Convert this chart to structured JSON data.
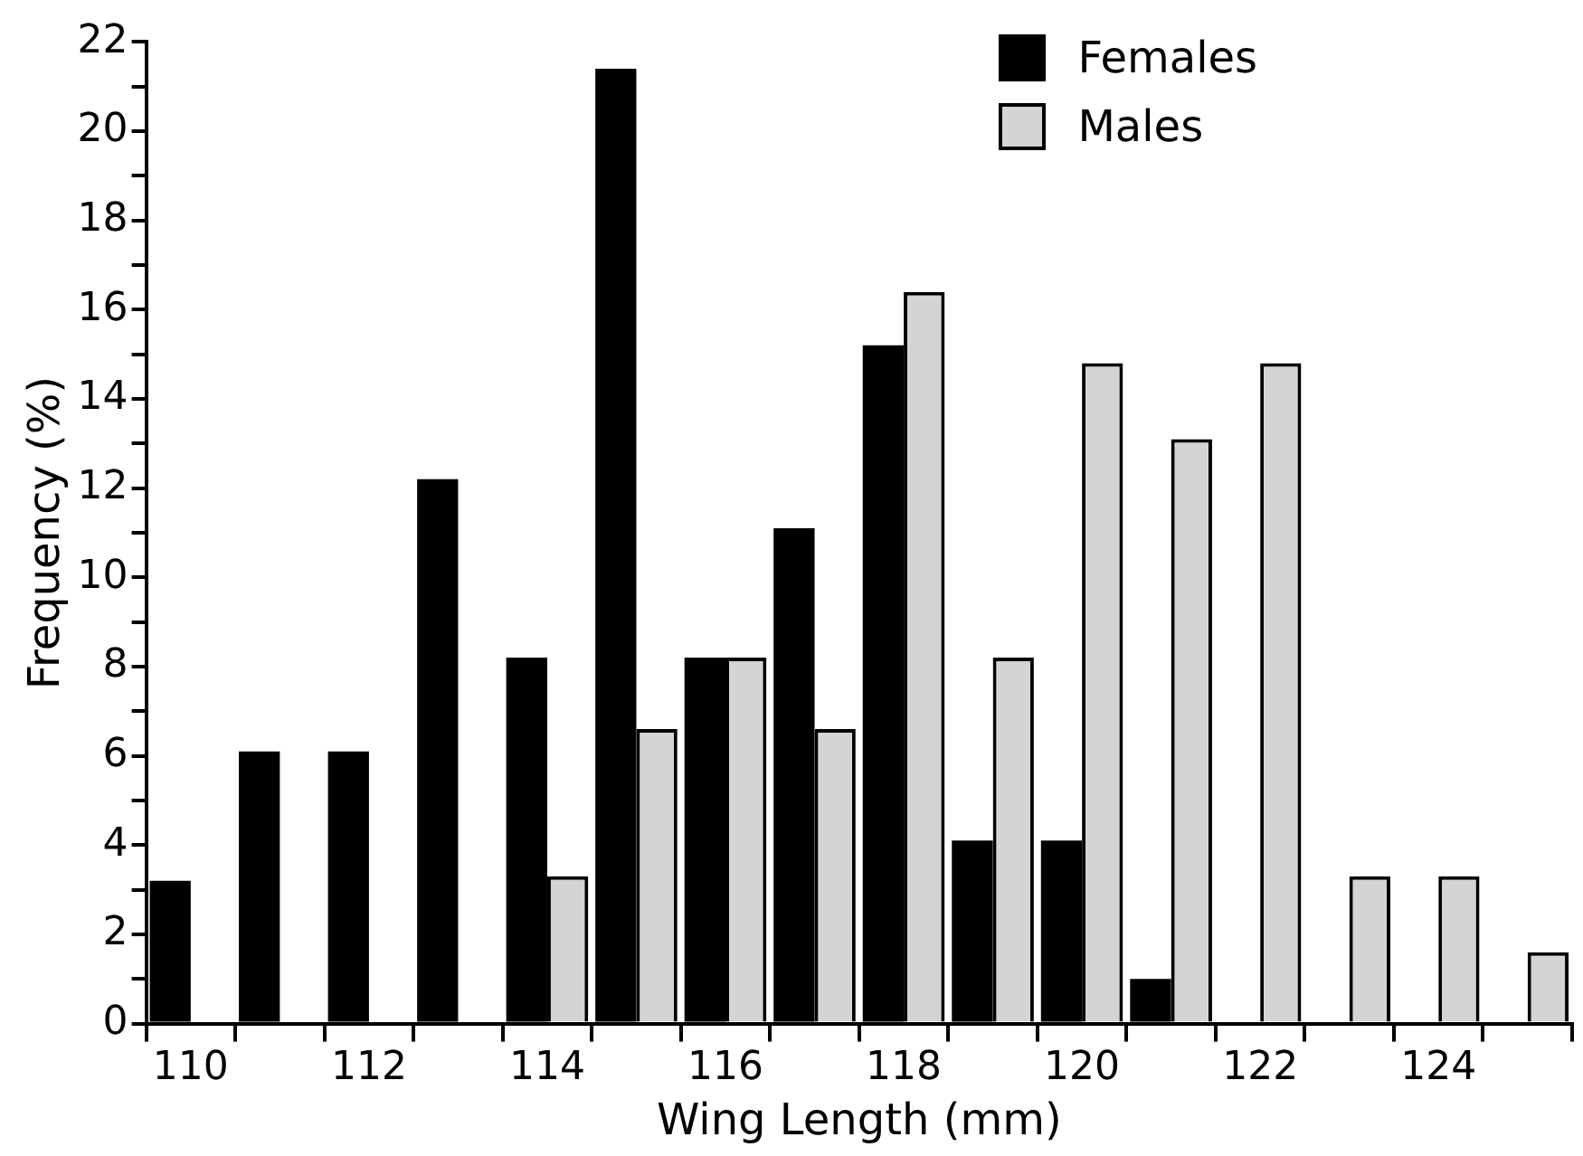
{
  "chart_data": {
    "type": "bar",
    "xlabel": "Wing Length (mm)",
    "ylabel": "Frequency (%)",
    "categories": [
      "110",
      null,
      "112",
      null,
      "114",
      null,
      "116",
      null,
      "118",
      null,
      "120",
      null,
      "122",
      null,
      "124",
      null
    ],
    "series": [
      {
        "name": "Females",
        "color": "#000000",
        "values": [
          3.2,
          6.1,
          6.1,
          12.2,
          8.2,
          21.4,
          8.2,
          11.1,
          15.2,
          4.1,
          4.1,
          1.0,
          0,
          0,
          0,
          0
        ]
      },
      {
        "name": "Males",
        "color": "#d4d4d4",
        "values": [
          0,
          0,
          0,
          0,
          3.3,
          6.6,
          8.2,
          6.6,
          16.4,
          8.2,
          14.8,
          13.1,
          14.8,
          3.3,
          3.3,
          1.6
        ]
      }
    ],
    "ylim": [
      0,
      22
    ],
    "yticks": [
      0,
      {
        "value": 1,
        "label": null
      },
      2,
      {
        "value": 3,
        "label": null
      },
      4,
      {
        "value": 5,
        "label": null
      },
      6,
      {
        "value": 7,
        "label": null
      },
      8,
      {
        "value": 9,
        "label": null
      },
      10,
      {
        "value": 11,
        "label": null
      },
      12,
      {
        "value": 13,
        "label": null
      },
      14,
      {
        "value": 15,
        "label": null
      },
      16,
      {
        "value": 17,
        "label": null
      },
      18,
      {
        "value": 19,
        "label": null
      },
      20,
      {
        "value": 21,
        "label": null
      },
      22
    ],
    "grid": false,
    "legend": "top right"
  }
}
